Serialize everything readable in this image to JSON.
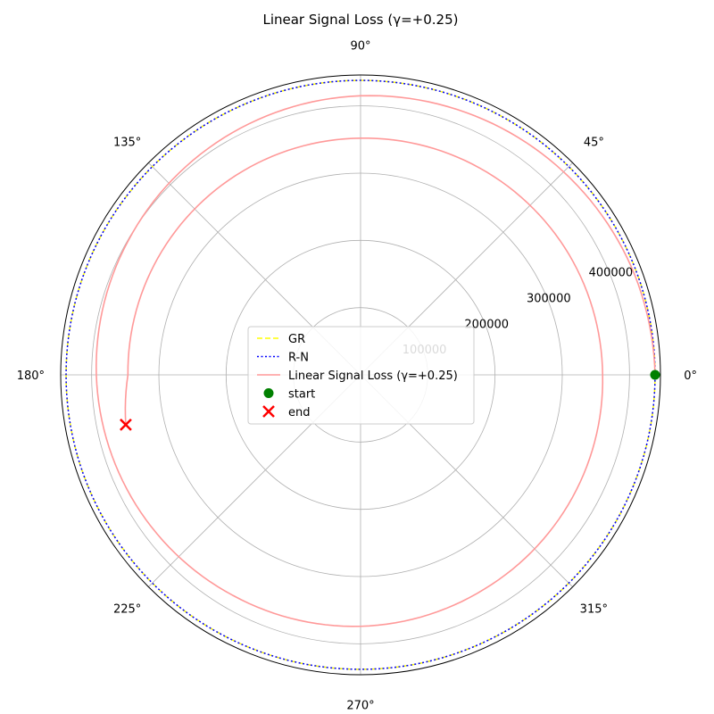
{
  "chart_data": {
    "type": "line",
    "subtype": "polar",
    "title": "Linear Signal Loss (γ=+0.25)",
    "theta_tick_labels": [
      "0°",
      "45°",
      "90°",
      "135°",
      "180°",
      "225°",
      "270°",
      "315°"
    ],
    "theta_ticks_deg": [
      0,
      45,
      90,
      135,
      180,
      225,
      270,
      315
    ],
    "r_tick_labels": [
      "100000",
      "200000",
      "300000",
      "400000"
    ],
    "r_ticks": [
      100000,
      200000,
      300000,
      400000
    ],
    "rlim": [
      0,
      446000
    ],
    "grid": true,
    "legend_position": "center",
    "series": [
      {
        "name": "GR",
        "style": "dashed",
        "color": "#ffff00",
        "r": 438000,
        "theta_deg": [
          0,
          360
        ]
      },
      {
        "name": "R-N",
        "style": "dotted",
        "color": "#0000ff",
        "r": 438000,
        "theta_deg": [
          0,
          360
        ]
      },
      {
        "name": "Linear Signal Loss (γ=+0.25)",
        "style": "solid",
        "color": "#ff9999",
        "theta_deg": [
          0,
          20,
          45,
          70,
          90,
          120,
          150,
          180,
          210,
          240,
          270,
          300,
          330,
          360,
          390,
          420,
          450,
          480,
          510,
          540,
          552
        ],
        "r": [
          438000,
          434000,
          427000,
          420000,
          415000,
          407000,
          399000,
          393000,
          386000,
          379000,
          374000,
          368000,
          364000,
          360000,
          358000,
          355000,
          352000,
          350000,
          348000,
          346000,
          357000
        ]
      }
    ],
    "markers": [
      {
        "name": "start",
        "shape": "circle",
        "color": "#008000",
        "r": 438000,
        "theta_deg": 0
      },
      {
        "name": "end",
        "shape": "x",
        "color": "#ff0000",
        "r": 357000,
        "theta_deg": 192
      }
    ]
  }
}
